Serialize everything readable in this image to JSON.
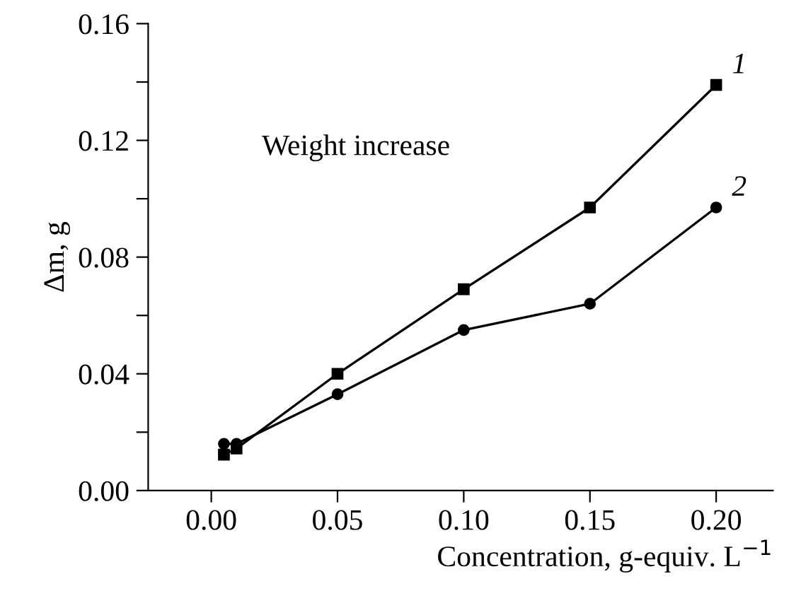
{
  "chart_data": {
    "type": "line",
    "xlabel": "Concentration, g-equiv. L$^{−1}$",
    "ylabel": "Δm, g",
    "annotations": [
      "Weight increase"
    ],
    "xlim": [
      -0.025,
      0.2225
    ],
    "ylim": [
      0,
      0.16
    ],
    "xticks": [
      {
        "value": 0,
        "label": "0.00"
      },
      0.05,
      {
        "value": 0.1,
        "label": "0.10"
      },
      0.15,
      {
        "value": 0.2,
        "label": "0.20"
      }
    ],
    "yticks": [
      {
        "value": 0,
        "label": "0.00"
      },
      {
        "value": 0.02,
        "label": null
      },
      0.04,
      {
        "value": 0.06,
        "label": null
      },
      0.08,
      {
        "value": 0.1,
        "label": null
      },
      0.12,
      {
        "value": 0.14,
        "label": null
      },
      0.16
    ],
    "grid": false,
    "legend": false,
    "line_style": "solid",
    "x": [
      0.005,
      0.01,
      0.05,
      0.1,
      0.15,
      0.2
    ],
    "series": [
      {
        "name": "1",
        "color": "#000000",
        "marker": "square",
        "values": [
          0.0123,
          0.0144,
          0.04,
          0.069,
          0.097,
          0.139
        ]
      },
      {
        "name": "2",
        "color": "#000000",
        "marker": "circle",
        "values": [
          0.016,
          0.016,
          0.033,
          0.055,
          0.064,
          0.097
        ]
      }
    ]
  }
}
